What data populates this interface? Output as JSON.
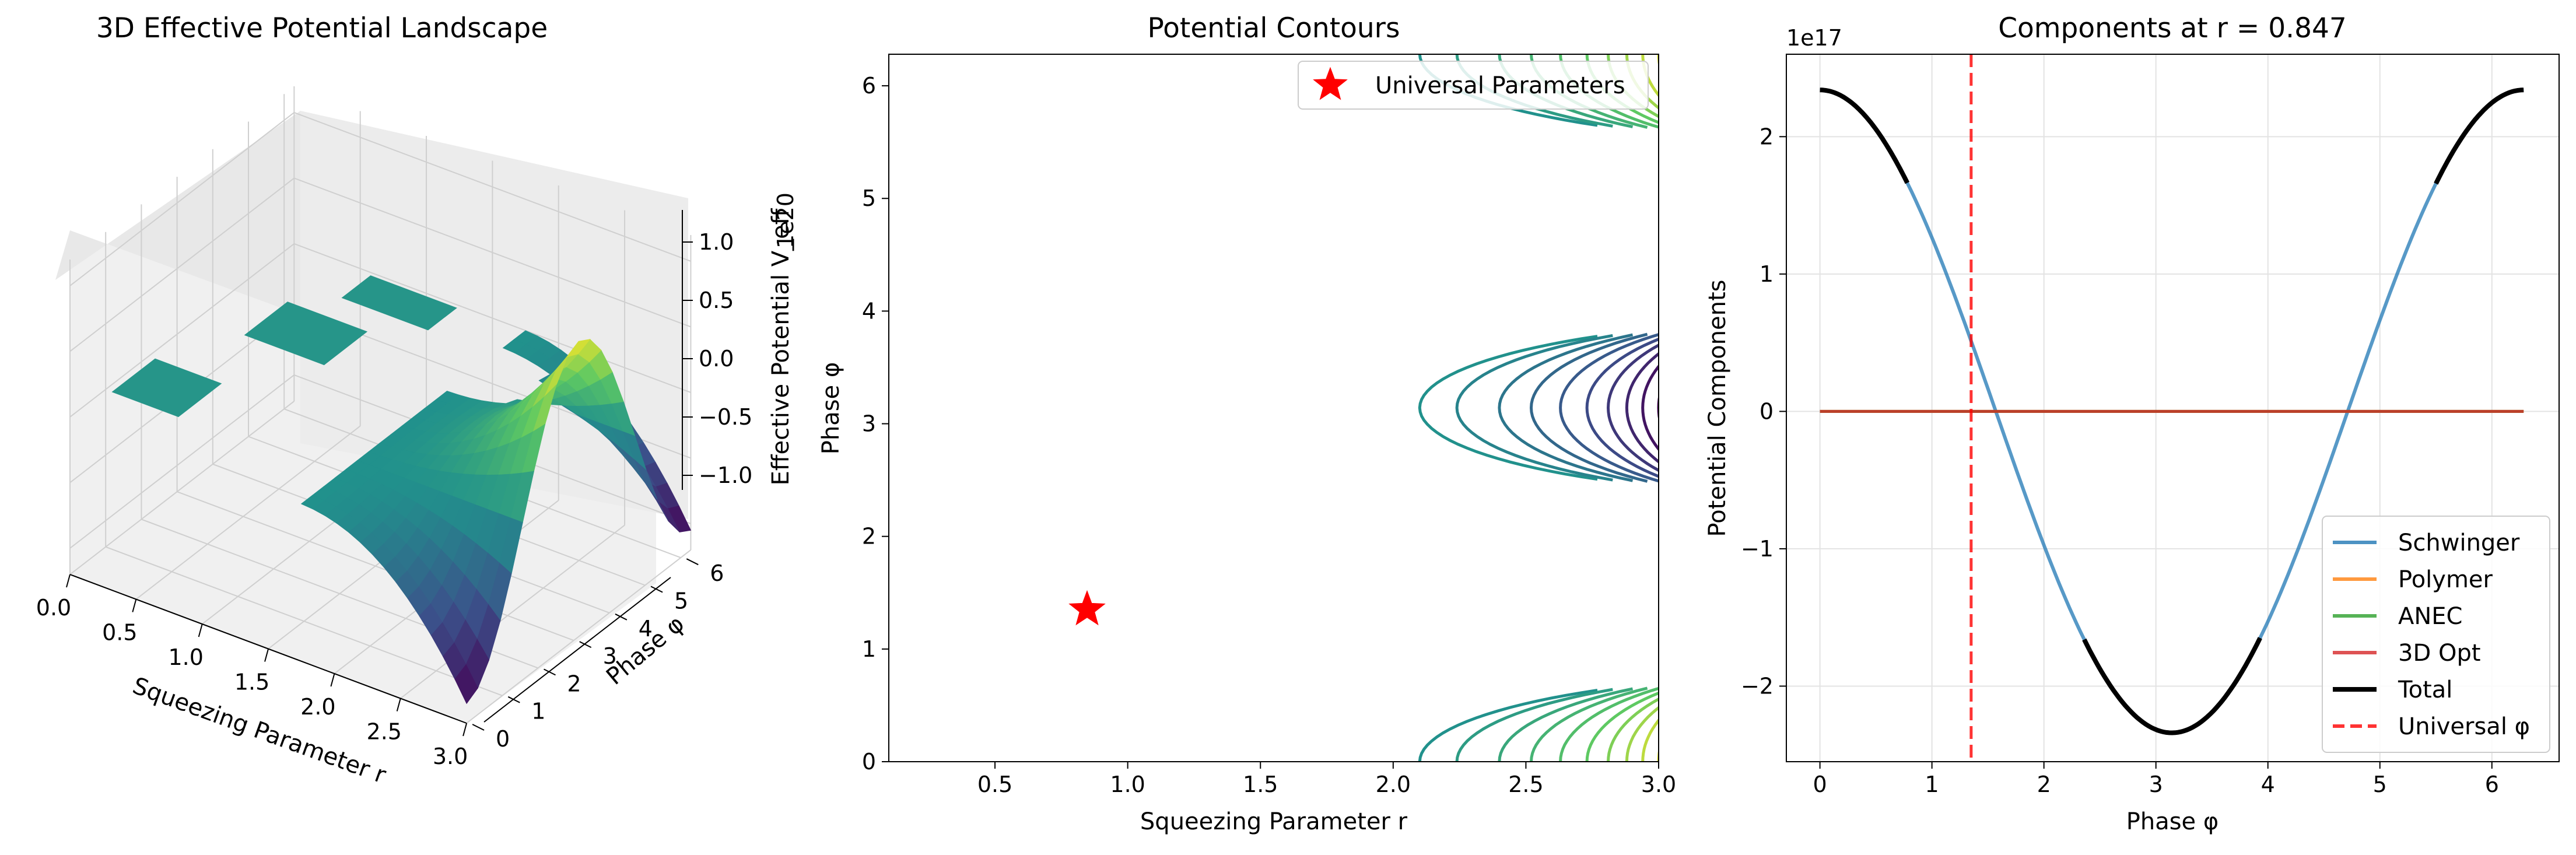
{
  "chart_data": [
    {
      "type": "surface3d",
      "title": "3D Effective Potential Landscape",
      "xlabel": "Squeezing Parameter r",
      "ylabel": "Phase φ",
      "zlabel": "Effective Potential V_eff",
      "z_offset_label": "1e20",
      "xlim": [
        0,
        3.0
      ],
      "ylim": [
        0,
        6.28
      ],
      "zlim": [
        -1.2,
        1.2
      ],
      "x_ticks": [
        "0.0",
        "0.5",
        "1.0",
        "1.5",
        "2.0",
        "2.5",
        "3.0"
      ],
      "y_ticks": [
        "0",
        "1",
        "2",
        "3",
        "4",
        "5",
        "6"
      ],
      "z_ticks": [
        "−1.0",
        "−0.5",
        "0.0",
        "0.5",
        "1.0"
      ],
      "colormap": "viridis",
      "grid": true
    },
    {
      "type": "contour",
      "title": "Potential Contours",
      "xlabel": "Squeezing Parameter r",
      "ylabel": "Phase φ",
      "xlim": [
        0.1,
        3.0
      ],
      "ylim": [
        0,
        6.28
      ],
      "x_ticks": [
        "0.5",
        "1.0",
        "1.5",
        "2.0",
        "2.5",
        "3.0"
      ],
      "y_ticks": [
        "0",
        "1",
        "2",
        "3",
        "4",
        "5",
        "6"
      ],
      "colormap": "viridis",
      "contour_radii": [
        2.1,
        2.24,
        2.4,
        2.52,
        2.63,
        2.73,
        2.81,
        2.88,
        2.94,
        3.0
      ],
      "contour_centers_phi": [
        0,
        3.1416,
        6.2832
      ],
      "marker": {
        "label": "Universal Parameters",
        "r": 0.847,
        "phi": 1.35,
        "color": "#ff0000",
        "symbol": "star"
      },
      "legend_position": "top-right",
      "grid": false
    },
    {
      "type": "line",
      "title": "Components at r = 0.847",
      "xlabel": "Phase φ",
      "ylabel": "Potential Components",
      "y_offset_label": "1e17",
      "xlim": [
        -0.3,
        6.6
      ],
      "ylim": [
        -2.55,
        2.6
      ],
      "x_ticks": [
        "0",
        "1",
        "2",
        "3",
        "4",
        "5",
        "6"
      ],
      "y_ticks": [
        "−2",
        "−1",
        "0",
        "1",
        "2"
      ],
      "grid": true,
      "legend_position": "lower-right",
      "series": [
        {
          "name": "Schwinger",
          "color": "#1f77b4",
          "amplitude": 2.34,
          "function": "cos"
        },
        {
          "name": "Polymer",
          "color": "#ff7f0e",
          "value": 0
        },
        {
          "name": "ANEC",
          "color": "#2ca02c",
          "value": 0
        },
        {
          "name": "3D Opt",
          "color": "#d62728",
          "value": 0
        },
        {
          "name": "Total",
          "color": "#000000",
          "amplitude": 2.34,
          "function": "cos"
        },
        {
          "name": "Universal φ",
          "color": "#ff0000",
          "x": 1.35,
          "style": "dashed"
        }
      ]
    }
  ]
}
